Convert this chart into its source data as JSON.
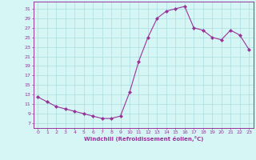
{
  "x": [
    0,
    1,
    2,
    3,
    4,
    5,
    6,
    7,
    8,
    9,
    10,
    11,
    12,
    13,
    14,
    15,
    16,
    17,
    18,
    19,
    20,
    21,
    22,
    23
  ],
  "y": [
    12.5,
    11.5,
    10.5,
    10.0,
    9.5,
    9.0,
    8.5,
    8.0,
    8.0,
    8.5,
    13.5,
    20.0,
    25.0,
    29.0,
    30.5,
    31.0,
    31.5,
    27.0,
    26.5,
    25.0,
    24.5,
    26.5,
    25.5,
    22.5
  ],
  "line_color": "#993399",
  "marker": "D",
  "marker_size": 2,
  "bg_color": "#d6f5f5",
  "grid_color": "#aadddd",
  "xlabel": "Windchill (Refroidissement éolien,°C)",
  "xlabel_color": "#993399",
  "tick_color": "#993399",
  "yticks": [
    7,
    9,
    11,
    13,
    15,
    17,
    19,
    21,
    23,
    25,
    27,
    29,
    31
  ],
  "ylim": [
    6.0,
    32.5
  ],
  "xlim": [
    -0.5,
    23.5
  ],
  "xticks": [
    0,
    1,
    2,
    3,
    4,
    5,
    6,
    7,
    8,
    9,
    10,
    11,
    12,
    13,
    14,
    15,
    16,
    17,
    18,
    19,
    20,
    21,
    22,
    23
  ]
}
